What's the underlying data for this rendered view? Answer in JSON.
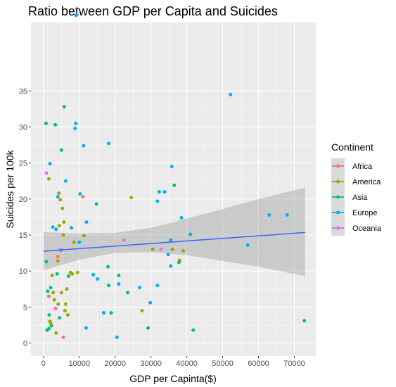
{
  "chart_data": {
    "type": "scatter",
    "title": "Ratio between GDP per Capita and Suicides",
    "xlabel": "GDP per Capinta($)",
    "ylabel": "Suicides per 100k",
    "xlim": [
      -3500,
      76000
    ],
    "ylim": [
      -1.8,
      44.5
    ],
    "xticks": [
      0,
      10000,
      20000,
      30000,
      40000,
      50000,
      60000,
      70000
    ],
    "xtick_labels": [
      "0",
      "10000",
      "20000",
      "30000",
      "40000",
      "50000",
      "60000",
      "70000"
    ],
    "yticks": [
      0,
      5,
      10,
      15,
      20,
      25,
      30,
      35
    ],
    "ytick_labels": [
      "0",
      "5",
      "10",
      "15",
      "20",
      "25",
      "30",
      "35"
    ],
    "grid": true,
    "legend": {
      "title": "Continent",
      "placement": "right"
    },
    "colors": {
      "Africa": "#F8766D",
      "America": "#A3A500",
      "Asia": "#00BF7D",
      "Europe": "#00B0F6",
      "Oceania": "#E76BF3",
      "trend_line": "#3366FF",
      "confidence_band": "#999999",
      "panel_background": "#EBEBEB"
    },
    "series": [
      {
        "name": "Africa",
        "points": [
          [
            1500,
            6.5
          ],
          [
            3300,
            4.8
          ],
          [
            4000,
            12.0
          ],
          [
            5500,
            0.8
          ],
          [
            11000,
            20.3
          ]
        ]
      },
      {
        "name": "America",
        "points": [
          [
            1500,
            22.8
          ],
          [
            1800,
            3.0
          ],
          [
            2000,
            2.8
          ],
          [
            2400,
            9.4
          ],
          [
            2700,
            7.0
          ],
          [
            3000,
            6.0
          ],
          [
            3500,
            1.4
          ],
          [
            4000,
            11.4
          ],
          [
            4100,
            5.4
          ],
          [
            4300,
            20.8
          ],
          [
            4400,
            16.3
          ],
          [
            4700,
            19.9
          ],
          [
            5000,
            7.0
          ],
          [
            5300,
            18.7
          ],
          [
            5500,
            15.0
          ],
          [
            5700,
            16.8
          ],
          [
            6000,
            4.5
          ],
          [
            6200,
            5.4
          ],
          [
            6500,
            7.5
          ],
          [
            6800,
            3.9
          ],
          [
            7500,
            9.8
          ],
          [
            7800,
            16.0
          ],
          [
            8000,
            9.6
          ],
          [
            8500,
            14.0
          ],
          [
            9500,
            9.8
          ],
          [
            11300,
            14.9
          ],
          [
            24500,
            20.2
          ],
          [
            30500,
            13.0
          ],
          [
            36000,
            13.0
          ],
          [
            38000,
            11.5
          ],
          [
            39000,
            12.8
          ],
          [
            27500,
            4.5
          ]
        ]
      },
      {
        "name": "Asia",
        "points": [
          [
            700,
            30.5
          ],
          [
            800,
            11.3
          ],
          [
            1000,
            1.8
          ],
          [
            1200,
            7.2
          ],
          [
            1500,
            2.0
          ],
          [
            1600,
            3.9
          ],
          [
            2000,
            7.7
          ],
          [
            2200,
            2.4
          ],
          [
            3300,
            30.3
          ],
          [
            3800,
            9.6
          ],
          [
            4500,
            3.5
          ],
          [
            5000,
            26.8
          ],
          [
            5800,
            32.8
          ],
          [
            7000,
            9.3
          ],
          [
            14800,
            19.3
          ],
          [
            18000,
            10.6
          ],
          [
            18200,
            8.0
          ],
          [
            18900,
            4.2
          ],
          [
            21000,
            9.4
          ],
          [
            23500,
            7.0
          ],
          [
            29200,
            2.1
          ],
          [
            36500,
            21.9
          ],
          [
            37800,
            11.2
          ],
          [
            41800,
            1.8
          ],
          [
            72800,
            3.1
          ]
        ]
      },
      {
        "name": "Europe",
        "points": [
          [
            1800,
            24.9
          ],
          [
            2600,
            16.1
          ],
          [
            3500,
            15.8
          ],
          [
            4000,
            20.3
          ],
          [
            4800,
            12.9
          ],
          [
            6200,
            22.5
          ],
          [
            7800,
            16.0
          ],
          [
            8800,
            29.8
          ],
          [
            9000,
            30.5
          ],
          [
            9100,
            45.5
          ],
          [
            10000,
            14.0
          ],
          [
            10200,
            20.7
          ],
          [
            11200,
            27.4
          ],
          [
            11900,
            2.1
          ],
          [
            12000,
            16.8
          ],
          [
            13900,
            9.5
          ],
          [
            15100,
            8.9
          ],
          [
            16800,
            4.2
          ],
          [
            18200,
            27.7
          ],
          [
            20500,
            0.8
          ],
          [
            21000,
            8.2
          ],
          [
            26800,
            7.7
          ],
          [
            29800,
            5.6
          ],
          [
            31800,
            19.7
          ],
          [
            31800,
            8.0
          ],
          [
            32300,
            21.0
          ],
          [
            33800,
            21.0
          ],
          [
            34800,
            12.3
          ],
          [
            35500,
            14.3
          ],
          [
            35800,
            24.5
          ],
          [
            35500,
            10.7
          ],
          [
            38500,
            17.4
          ],
          [
            41000,
            15.1
          ],
          [
            52200,
            34.5
          ],
          [
            57000,
            13.6
          ],
          [
            63000,
            17.8
          ],
          [
            68000,
            17.8
          ]
        ]
      },
      {
        "name": "Oceania",
        "points": [
          [
            800,
            23.6
          ],
          [
            3400,
            4.8
          ],
          [
            5000,
            13.0
          ],
          [
            22500,
            14.3
          ],
          [
            32800,
            13.0
          ]
        ]
      }
    ],
    "trend": {
      "method": "linear",
      "x": [
        0,
        73000
      ],
      "y": [
        12.75,
        15.35
      ],
      "band": [
        [
          0,
          10.1,
          15.4
        ],
        [
          10000,
          11.6,
          15.2
        ],
        [
          20000,
          12.5,
          15.3
        ],
        [
          30000,
          12.6,
          16.0
        ],
        [
          40000,
          12.2,
          17.3
        ],
        [
          50000,
          11.4,
          18.6
        ],
        [
          60000,
          10.6,
          20.0
        ],
        [
          73000,
          9.3,
          21.6
        ]
      ]
    }
  }
}
